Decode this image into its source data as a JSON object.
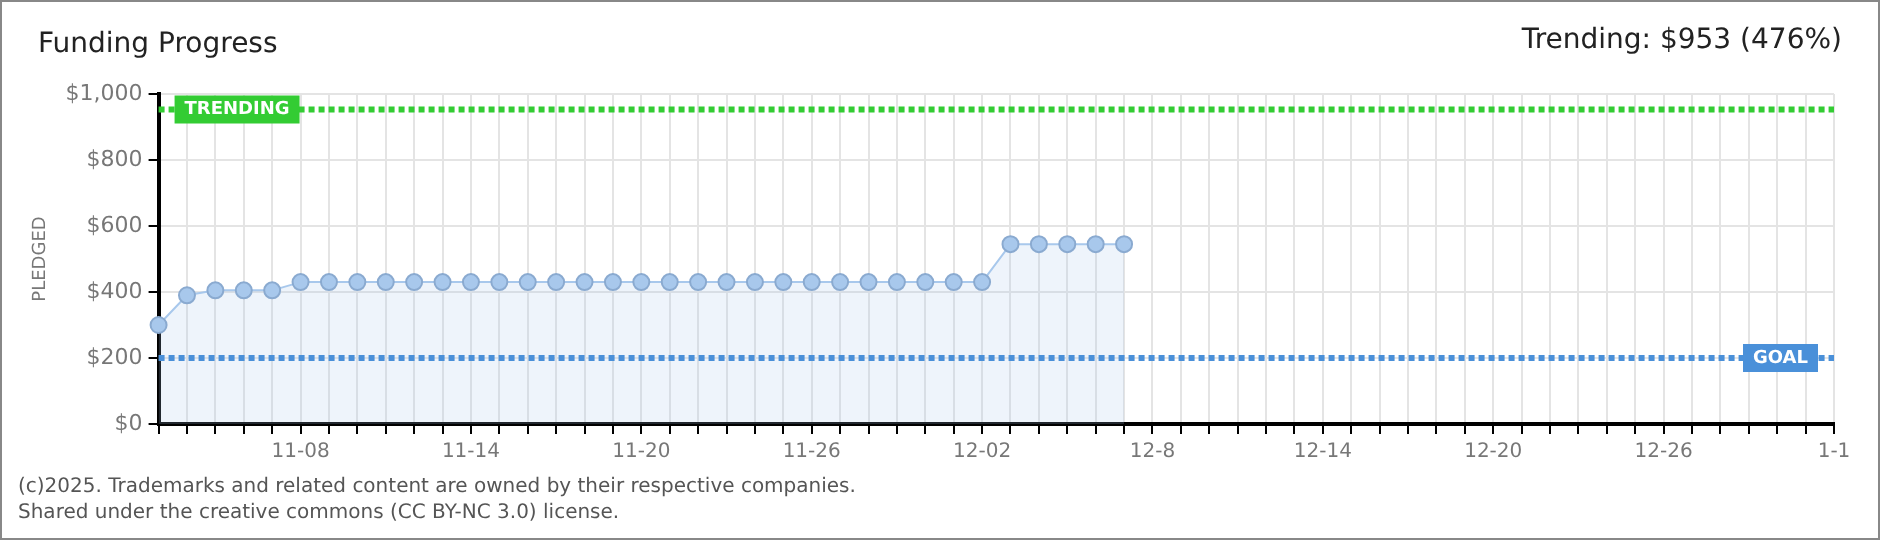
{
  "chart_data": {
    "type": "area",
    "title": "Funding Progress",
    "ylabel": "PLEDGED",
    "annotations": [
      "Trending: $953 (476%)",
      "(c)2025. Trademarks and related content are owned by their respective companies.",
      "Shared under the creative commons (CC BY-NC 3.0) license."
    ],
    "categories": [
      null,
      null,
      null,
      null,
      null,
      "11-08",
      null,
      null,
      null,
      null,
      null,
      "11-14",
      null,
      null,
      null,
      null,
      null,
      "11-20",
      null,
      null,
      null,
      null,
      null,
      "11-26",
      null,
      null,
      null,
      null,
      null,
      "12-02",
      null,
      null,
      null,
      null,
      null,
      "12-8",
      null,
      null,
      null,
      null,
      null,
      "12-14",
      null,
      null,
      null,
      null,
      null,
      "12-20",
      null,
      null,
      null,
      null,
      null,
      "12-26",
      null,
      null,
      null,
      null,
      null,
      "1-1"
    ],
    "series": [
      {
        "color": "#a8c8ec",
        "values": [
          300,
          390,
          405,
          405,
          405,
          430,
          430,
          430,
          430,
          430,
          430,
          430,
          430,
          430,
          430,
          430,
          430,
          430,
          430,
          430,
          430,
          430,
          430,
          430,
          430,
          430,
          430,
          430,
          430,
          430,
          545,
          545,
          545,
          545,
          545,
          null,
          null,
          null,
          null,
          null,
          null,
          null,
          null,
          null,
          null,
          null,
          null,
          null,
          null,
          null,
          null,
          null,
          null,
          null,
          null,
          null,
          null,
          null,
          null,
          null
        ]
      }
    ],
    "ylim": [
      0,
      1000
    ],
    "yticks": [
      {
        "value": 0,
        "label": "$0"
      },
      {
        "value": 200,
        "label": "$200"
      },
      {
        "value": 400,
        "label": "$400"
      },
      {
        "value": 600,
        "label": "$600"
      },
      {
        "value": 800,
        "label": "$800"
      },
      {
        "value": 1000,
        "label": "$1,000"
      }
    ],
    "ref_lines": [
      {
        "axis": "y",
        "value": 953,
        "label": "TRENDING",
        "color": "#33cc33",
        "line_style": "dotted"
      },
      {
        "axis": "y",
        "value": 200,
        "label": "GOAL",
        "color": "#4a90d9",
        "line_style": "dotted"
      }
    ],
    "grid": true,
    "legend": false,
    "marker": "circle",
    "line_style": "solid"
  }
}
